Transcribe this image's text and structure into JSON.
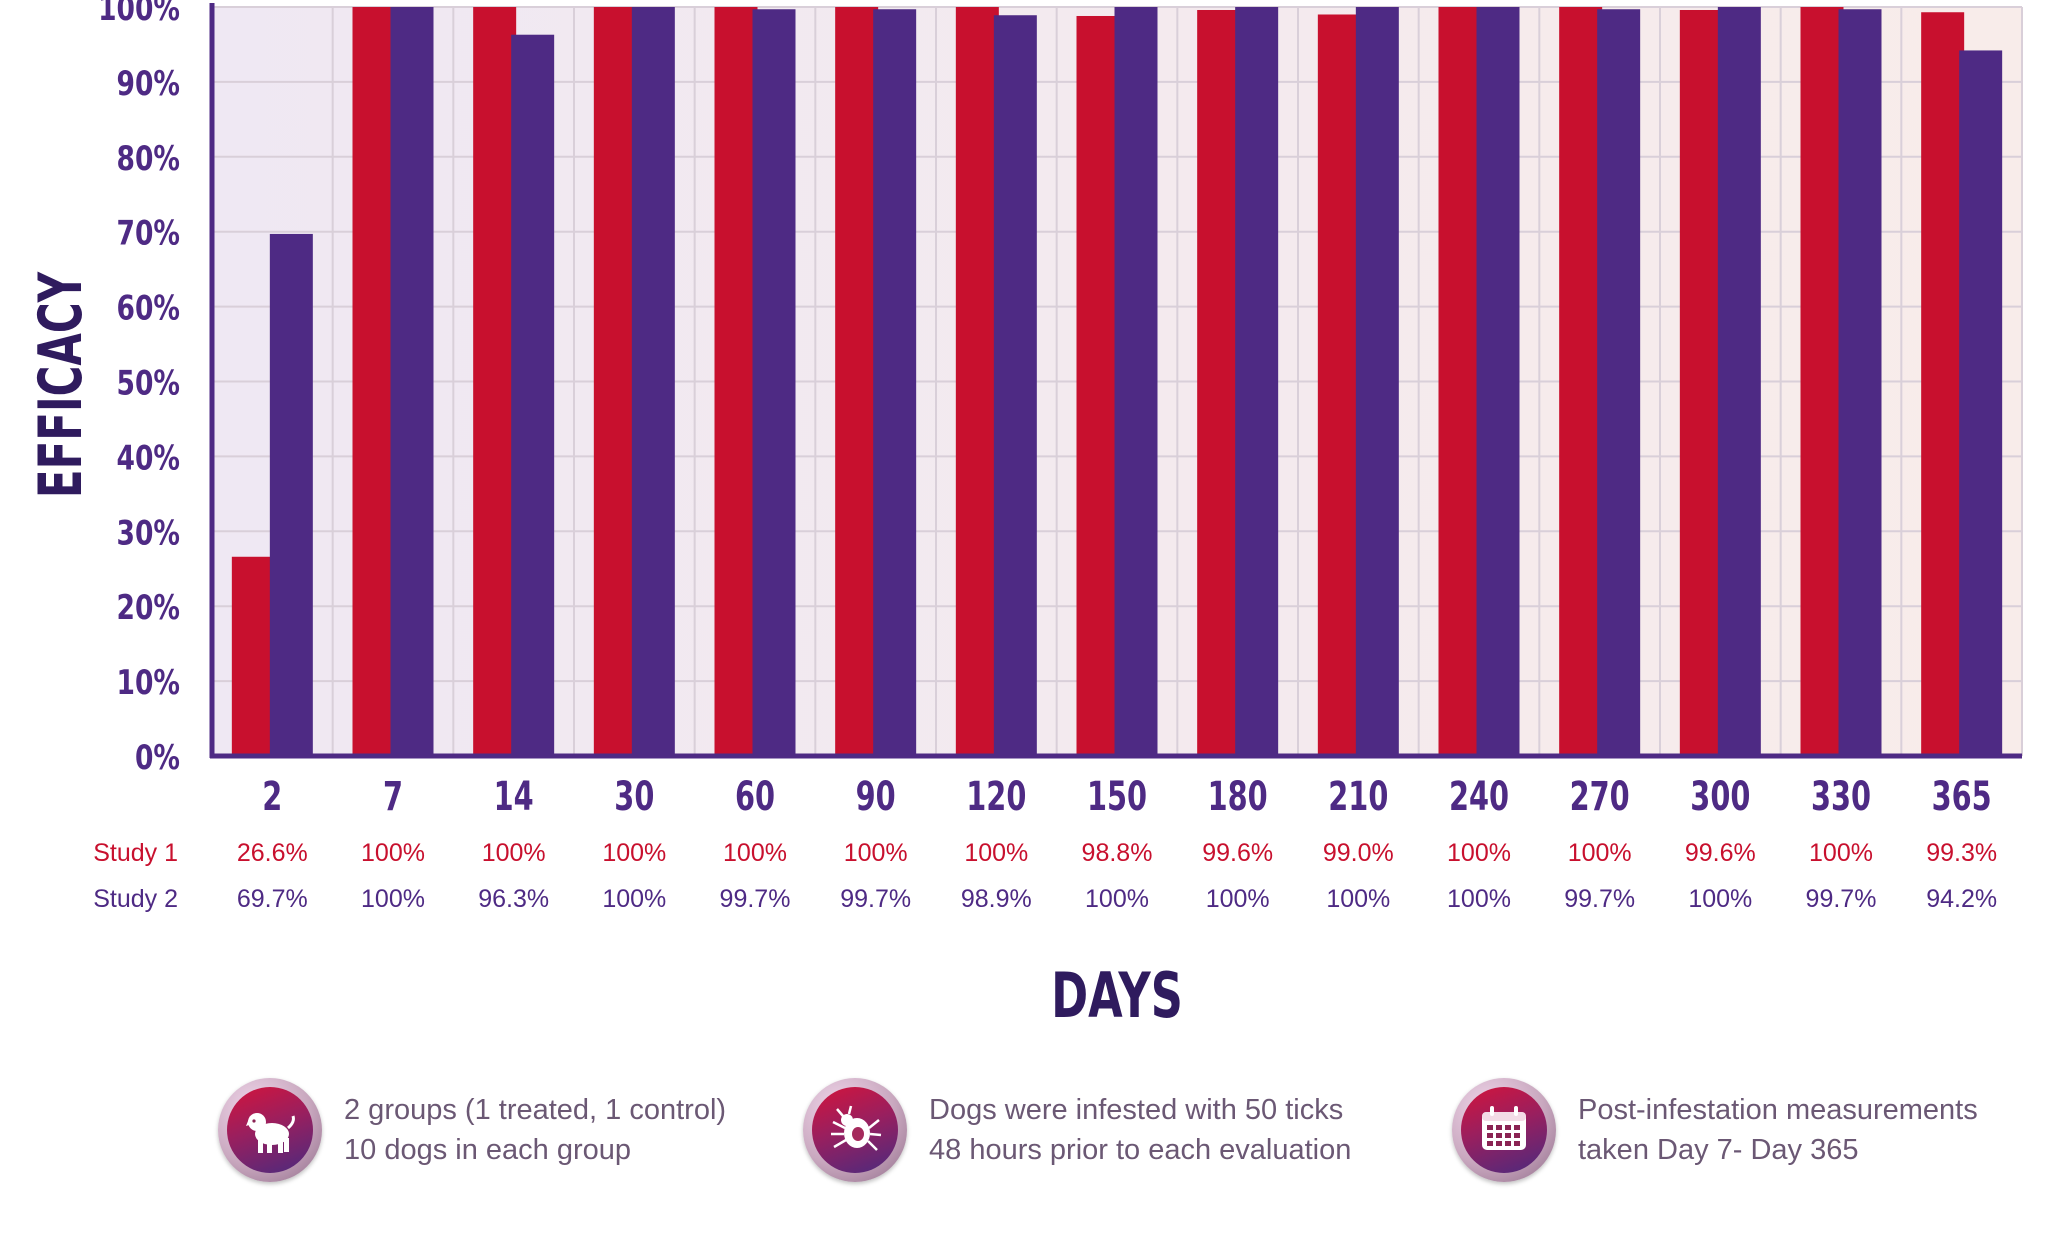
{
  "chart_data": {
    "type": "bar",
    "categories": [
      "2",
      "7",
      "14",
      "30",
      "60",
      "90",
      "120",
      "150",
      "180",
      "210",
      "240",
      "270",
      "300",
      "330",
      "365"
    ],
    "series": [
      {
        "name": "Study 1",
        "color": "#c8102e",
        "values": [
          26.6,
          100,
          100,
          100,
          100,
          100,
          100,
          98.8,
          99.6,
          99.0,
          100,
          100,
          99.6,
          100,
          99.3
        ],
        "labels": [
          "26.6%",
          "100%",
          "100%",
          "100%",
          "100%",
          "100%",
          "100%",
          "98.8%",
          "99.6%",
          "99.0%",
          "100%",
          "100%",
          "99.6%",
          "100%",
          "99.3%"
        ]
      },
      {
        "name": "Study 2",
        "color": "#4e2a84",
        "values": [
          69.7,
          100,
          96.3,
          100,
          99.7,
          99.7,
          98.9,
          100,
          100,
          100,
          100,
          99.7,
          100,
          99.7,
          94.2
        ],
        "labels": [
          "69.7%",
          "100%",
          "96.3%",
          "100%",
          "99.7%",
          "99.7%",
          "98.9%",
          "100%",
          "100%",
          "100%",
          "100%",
          "99.7%",
          "100%",
          "99.7%",
          "94.2%"
        ]
      }
    ],
    "yticks": [
      "0%",
      "10%",
      "20%",
      "30%",
      "40%",
      "50%",
      "60%",
      "70%",
      "80%",
      "90%",
      "100%"
    ],
    "ylim": [
      0,
      100
    ],
    "xlabel": "DAYS",
    "ylabel": "EFFICACY",
    "grid": true,
    "legend": "table-below-axis"
  },
  "notes": [
    {
      "icon": "dog-icon",
      "lines": [
        "2 groups (1 treated, 1 control)",
        "10 dogs in each group"
      ]
    },
    {
      "icon": "tick-icon",
      "lines": [
        "Dogs were infested with 50 ticks",
        "48 hours prior to each evaluation"
      ]
    },
    {
      "icon": "calendar-icon",
      "lines": [
        "Post-infestation measurements",
        "taken Day 7- Day 365"
      ]
    }
  ]
}
